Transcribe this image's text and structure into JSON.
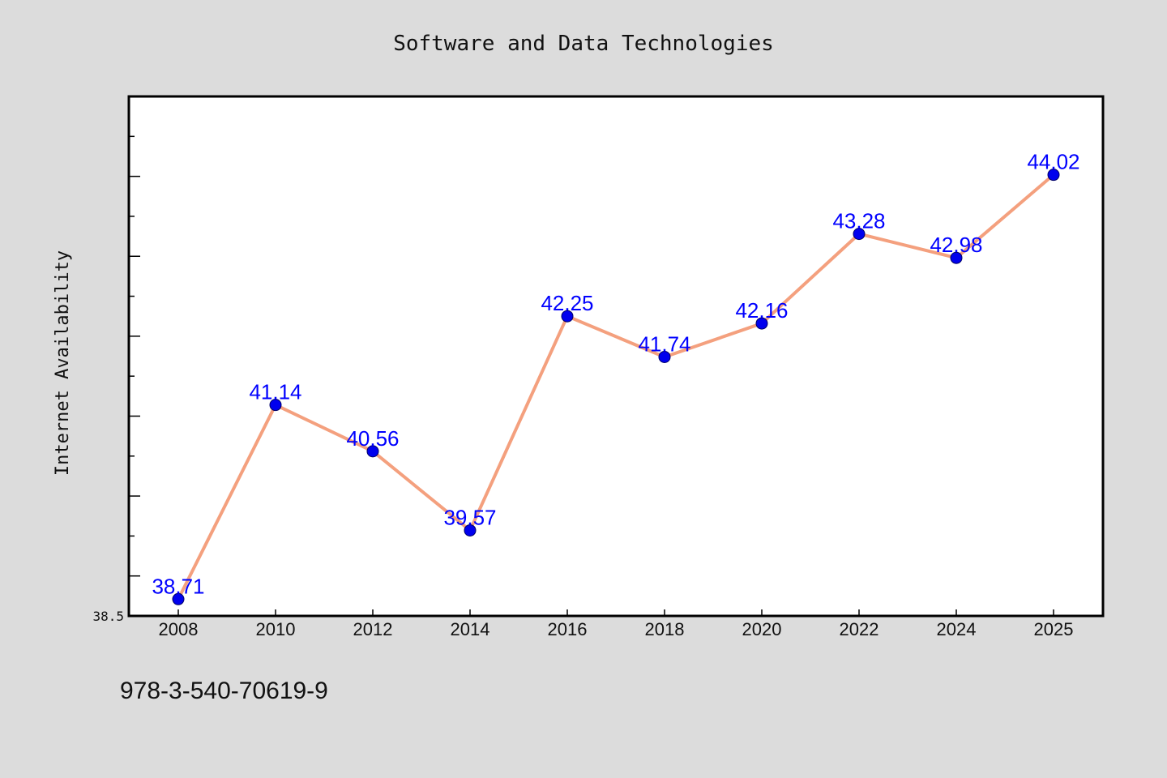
{
  "footer_text": "978-3-540-70619-9",
  "colors": {
    "background": "#dcdcdc",
    "plot_background": "#ffffff",
    "line": "#f4a07e",
    "marker": "#0000ee",
    "data_label": "#0000ff"
  },
  "chart_data": {
    "type": "line",
    "title": "Software and Data Technologies",
    "xlabel": "",
    "ylabel": "Internet Availability",
    "categories": [
      "2008",
      "2010",
      "2012",
      "2014",
      "2016",
      "2018",
      "2020",
      "2022",
      "2024",
      "2025"
    ],
    "series": [
      {
        "values": [
          38.71,
          41.14,
          40.56,
          39.57,
          42.25,
          41.74,
          42.16,
          43.28,
          42.98,
          44.02
        ],
        "labels": [
          "38.71",
          "41.14",
          "40.56",
          "39.57",
          "42.25",
          "41.74",
          "42.16",
          "43.28",
          "42.98",
          "44.02"
        ]
      }
    ],
    "y_tick_labels": [
      "38.5"
    ],
    "ylim": [
      38.5,
      45.0
    ],
    "y_minor_step": 0.5,
    "grid": false,
    "legend": "none"
  }
}
